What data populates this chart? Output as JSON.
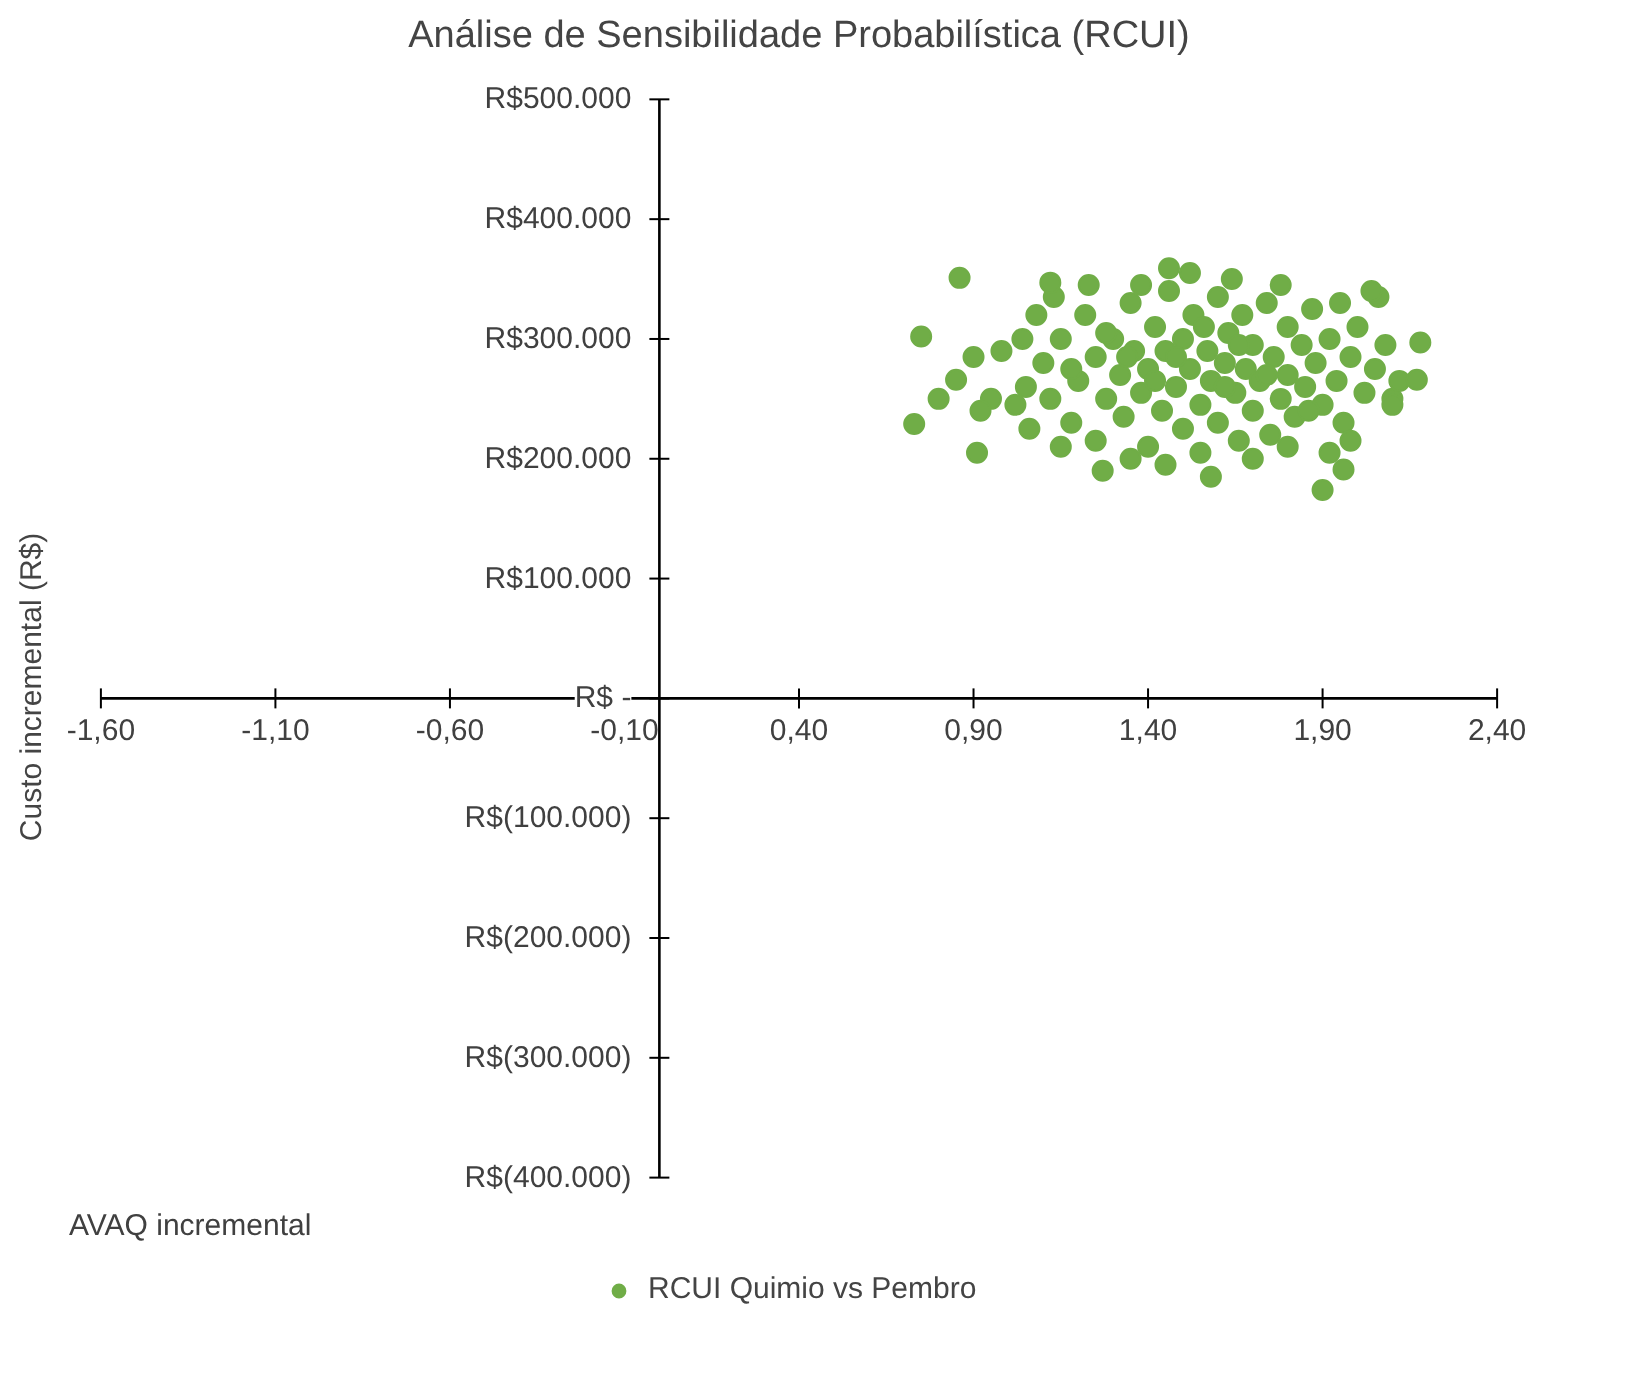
{
  "chart_data": {
    "type": "scatter",
    "title": "Análise de Sensibilidade Probabilística (RCUI)",
    "xlabel": "AVAQ incremental",
    "ylabel": "Custo incremental (R$)",
    "xlim": [
      -1.6,
      2.4
    ],
    "ylim": [
      -400000,
      500000
    ],
    "xticks": [
      {
        "value": -1.6,
        "label": "-1,60"
      },
      {
        "value": -1.1,
        "label": "-1,10"
      },
      {
        "value": -0.6,
        "label": "-0,60"
      },
      {
        "value": -0.1,
        "label": "-0,10"
      },
      {
        "value": 0.4,
        "label": "0,40"
      },
      {
        "value": 0.9,
        "label": "0,90"
      },
      {
        "value": 1.4,
        "label": "1,40"
      },
      {
        "value": 1.9,
        "label": "1,90"
      },
      {
        "value": 2.4,
        "label": "2,40"
      }
    ],
    "yticks": [
      {
        "value": -400000,
        "label": "R$(400.000)"
      },
      {
        "value": -300000,
        "label": "R$(300.000)"
      },
      {
        "value": -200000,
        "label": "R$(200.000)"
      },
      {
        "value": -100000,
        "label": "R$(100.000)"
      },
      {
        "value": 0,
        "label": "R$ -"
      },
      {
        "value": 100000,
        "label": "R$100.000"
      },
      {
        "value": 200000,
        "label": "R$200.000"
      },
      {
        "value": 300000,
        "label": "R$300.000"
      },
      {
        "value": 400000,
        "label": "R$400.000"
      },
      {
        "value": 500000,
        "label": "R$500.000"
      }
    ],
    "grid": false,
    "legend": "bottom",
    "marker": "circle",
    "series": [
      {
        "name": "RCUI Quimio vs Pembro",
        "color": "#70ad47",
        "x": [
          1.1,
          1.12,
          1.15,
          1.18,
          1.2,
          1.22,
          1.25,
          1.25,
          1.28,
          1.3,
          1.32,
          1.33,
          1.35,
          1.36,
          1.38,
          1.4,
          1.4,
          1.42,
          1.44,
          1.45,
          1.46,
          1.48,
          1.5,
          1.5,
          1.52,
          1.53,
          1.55,
          1.55,
          1.57,
          1.58,
          1.6,
          1.6,
          1.62,
          1.63,
          1.65,
          1.66,
          1.67,
          1.68,
          1.7,
          1.7,
          1.72,
          1.74,
          1.75,
          1.76,
          1.78,
          1.8,
          1.8,
          1.82,
          1.84,
          1.85,
          1.87,
          1.88,
          1.9,
          1.92,
          1.94,
          1.96,
          1.98,
          2.0,
          2.02,
          2.05,
          2.08,
          2.1,
          2.12,
          1.05,
          1.04,
          1.06,
          1.08,
          1.02,
          0.98,
          0.95,
          0.92,
          0.9,
          1.13,
          1.23,
          1.35,
          1.45,
          1.58,
          1.7,
          1.8,
          1.64,
          1.78,
          1.95,
          2.06,
          1.27,
          1.52,
          1.38,
          1.15,
          1.98,
          2.1,
          1.48,
          1.62,
          1.56,
          1.66,
          1.42,
          1.74,
          1.34,
          1.28,
          1.86,
          1.18,
          1.92,
          0.75,
          0.73,
          0.86,
          0.8,
          0.85,
          0.91,
          1.9,
          1.96,
          2.18,
          2.17,
          1.46,
          1.12,
          2.04
        ],
        "values": [
          280000,
          250000,
          300000,
          230000,
          265000,
          320000,
          285000,
          215000,
          250000,
          300000,
          270000,
          235000,
          330000,
          290000,
          255000,
          210000,
          275000,
          310000,
          240000,
          290000,
          340000,
          260000,
          225000,
          300000,
          275000,
          320000,
          245000,
          205000,
          290000,
          265000,
          335000,
          230000,
          280000,
          305000,
          255000,
          215000,
          320000,
          275000,
          240000,
          295000,
          265000,
          330000,
          220000,
          285000,
          250000,
          310000,
          270000,
          235000,
          295000,
          260000,
          325000,
          280000,
          245000,
          300000,
          265000,
          230000,
          285000,
          310000,
          255000,
          275000,
          295000,
          250000,
          265000,
          260000,
          300000,
          225000,
          320000,
          245000,
          290000,
          250000,
          240000,
          285000,
          335000,
          345000,
          200000,
          195000,
          185000,
          200000,
          210000,
          350000,
          345000,
          330000,
          335000,
          190000,
          355000,
          345000,
          210000,
          215000,
          245000,
          285000,
          260000,
          310000,
          295000,
          265000,
          270000,
          285000,
          305000,
          240000,
          275000,
          205000,
          302000,
          229000,
          351000,
          250000,
          266000,
          205000,
          174000,
          191000,
          297000,
          266000,
          359000,
          347000,
          340000
        ]
      }
    ]
  }
}
